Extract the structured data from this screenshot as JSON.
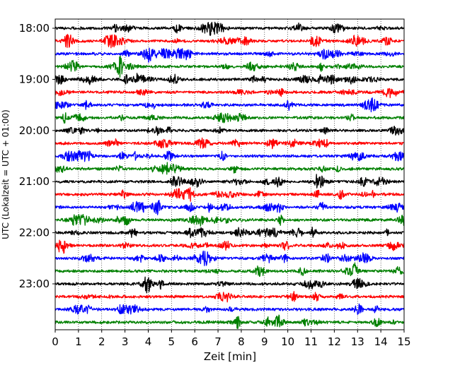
{
  "chart_data": {
    "type": "line",
    "title": "",
    "xlabel": "Zeit  [min]",
    "ylabel": "UTC (Lokalzeit = UTC + 01:00)",
    "xlim": [
      0,
      15
    ],
    "x_ticks": [
      0,
      1,
      2,
      3,
      4,
      5,
      6,
      7,
      8,
      9,
      10,
      11,
      12,
      13,
      14,
      15
    ],
    "y_tick_labels": [
      "18:00",
      "19:00",
      "20:00",
      "21:00",
      "22:00",
      "23:00"
    ],
    "grid": "vertical dotted lines at each minute",
    "legend": "none",
    "trace_colors": [
      "#000000",
      "#ff0000",
      "#0000ff",
      "#008000"
    ],
    "series": [
      {
        "start": "18:00",
        "color": "#000000"
      },
      {
        "start": "18:15",
        "color": "#ff0000"
      },
      {
        "start": "18:30",
        "color": "#0000ff"
      },
      {
        "start": "18:45",
        "color": "#008000"
      },
      {
        "start": "19:00",
        "color": "#000000"
      },
      {
        "start": "19:15",
        "color": "#ff0000"
      },
      {
        "start": "19:30",
        "color": "#0000ff"
      },
      {
        "start": "19:45",
        "color": "#008000"
      },
      {
        "start": "20:00",
        "color": "#000000"
      },
      {
        "start": "20:15",
        "color": "#ff0000"
      },
      {
        "start": "20:30",
        "color": "#0000ff"
      },
      {
        "start": "20:45",
        "color": "#008000"
      },
      {
        "start": "21:00",
        "color": "#000000"
      },
      {
        "start": "21:15",
        "color": "#ff0000"
      },
      {
        "start": "21:30",
        "color": "#0000ff"
      },
      {
        "start": "21:45",
        "color": "#008000"
      },
      {
        "start": "22:00",
        "color": "#000000"
      },
      {
        "start": "22:15",
        "color": "#ff0000"
      },
      {
        "start": "22:30",
        "color": "#0000ff"
      },
      {
        "start": "22:45",
        "color": "#008000"
      },
      {
        "start": "23:00",
        "color": "#000000"
      },
      {
        "start": "23:15",
        "color": "#ff0000"
      },
      {
        "start": "23:30",
        "color": "#0000ff"
      },
      {
        "start": "23:45",
        "color": "#008000"
      }
    ]
  }
}
